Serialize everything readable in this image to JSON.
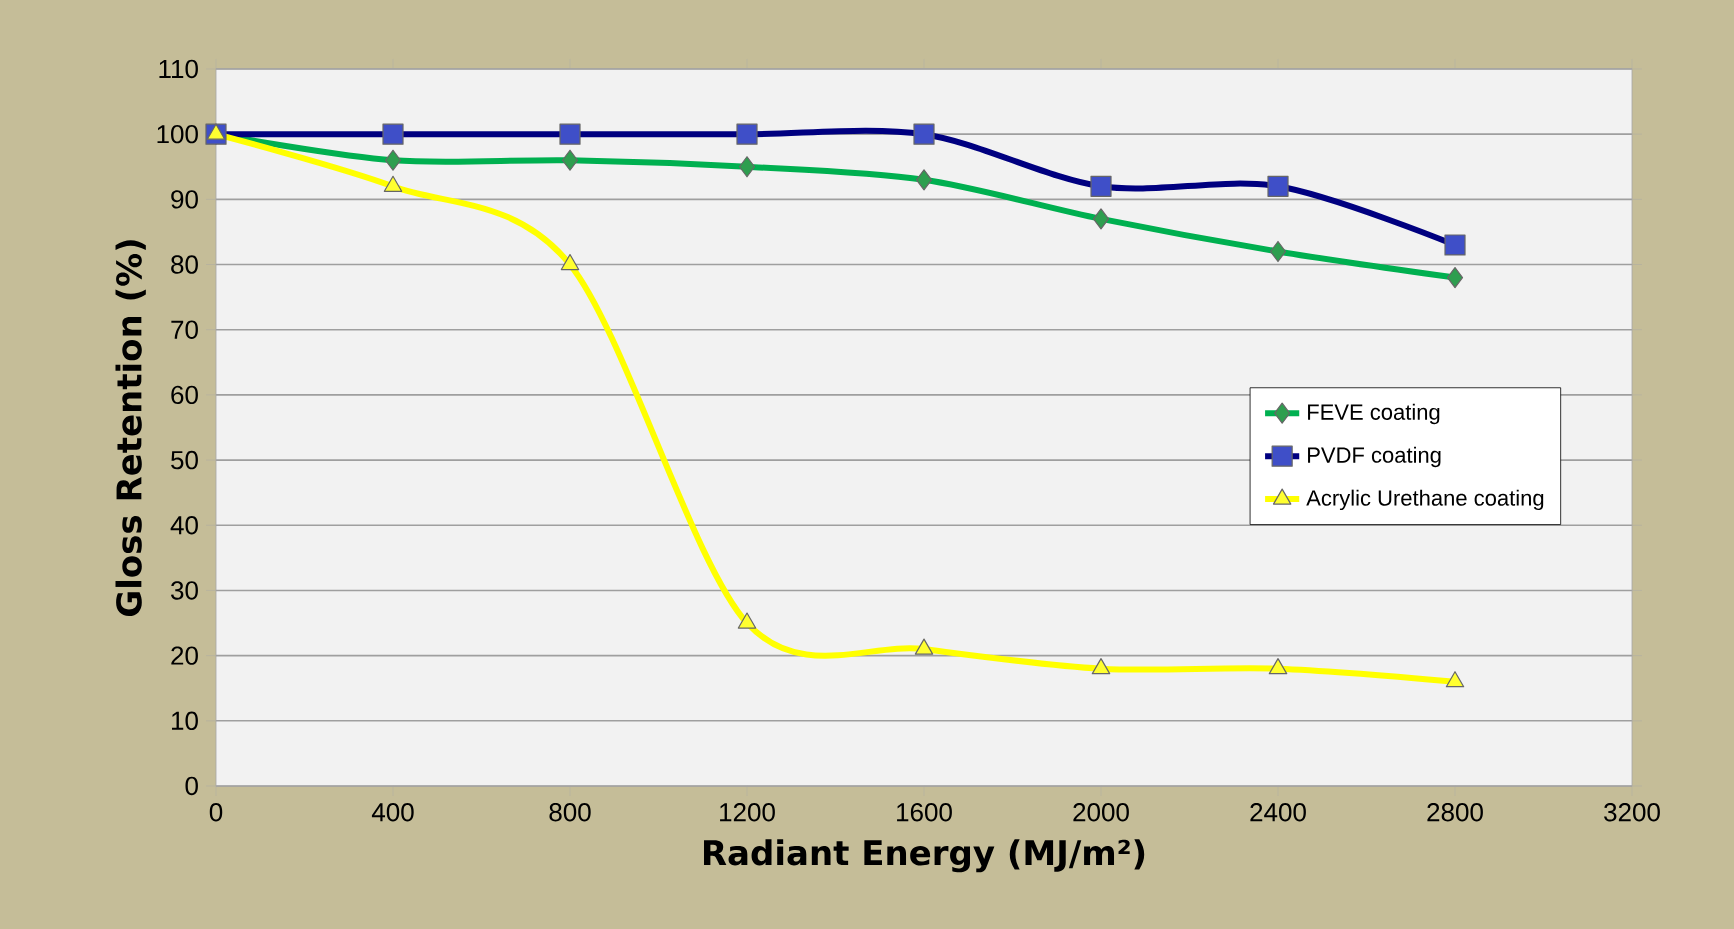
{
  "chart_data": {
    "type": "line",
    "xlabel": "Radiant Energy (MJ/m²)",
    "ylabel": "Gloss Retention (%)",
    "x": [
      0,
      400,
      800,
      1200,
      1600,
      2000,
      2400,
      2800
    ],
    "series": [
      {
        "name": "FEVE coating",
        "color": "#00b050",
        "marker": "diamond",
        "values": [
          100,
          96,
          96,
          95,
          93,
          87,
          82,
          78
        ]
      },
      {
        "name": "PVDF coating",
        "color": "#000080",
        "marker": "square",
        "values": [
          100,
          100,
          100,
          100,
          100,
          92,
          92,
          83
        ]
      },
      {
        "name": "Acrylic Urethane coating",
        "color": "#ffff00",
        "marker": "triangle",
        "values": [
          100,
          92,
          80,
          25,
          21,
          18,
          18,
          16
        ]
      }
    ],
    "xlim": [
      0,
      3200
    ],
    "xticks": [
      0,
      400,
      800,
      1200,
      1600,
      2000,
      2400,
      2800,
      3200
    ],
    "ylim": [
      0,
      110
    ],
    "yticks": [
      0,
      10,
      20,
      30,
      40,
      50,
      60,
      70,
      80,
      90,
      100,
      110
    ],
    "grid": "y",
    "legend": "right",
    "line_style": "solid"
  }
}
